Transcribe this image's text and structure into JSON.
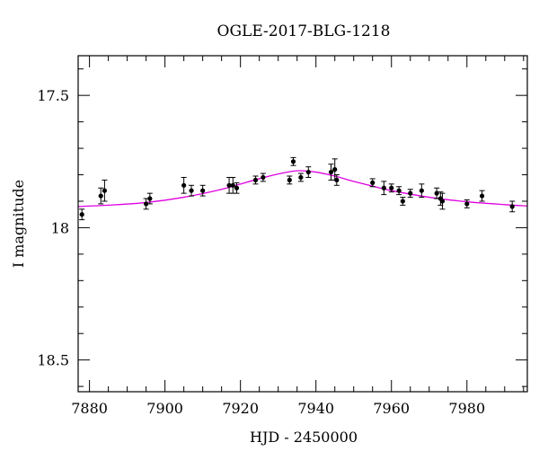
{
  "chart_data": {
    "type": "scatter",
    "title": "OGLE-2017-BLG-1218",
    "xlabel": "HJD - 2450000",
    "ylabel": "I magnitude",
    "xlim": [
      7877,
      7996
    ],
    "ylim": [
      18.62,
      17.35
    ],
    "y_inverted": true,
    "x_ticks": [
      7880,
      7900,
      7920,
      7940,
      7960,
      7980
    ],
    "x_tick_labels": [
      "7880",
      "7900",
      "7920",
      "7940",
      "7960",
      "7980"
    ],
    "y_ticks": [
      17.5,
      18,
      18.5
    ],
    "y_tick_labels": [
      "17.5",
      "18",
      "18.5"
    ],
    "grid": false,
    "series": [
      {
        "kind": "points-with-errorbars",
        "color": "#000000",
        "points": [
          {
            "x": 7878,
            "y": 17.95,
            "err": 0.02
          },
          {
            "x": 7883,
            "y": 17.88,
            "err": 0.03
          },
          {
            "x": 7884,
            "y": 17.86,
            "err": 0.04
          },
          {
            "x": 7895,
            "y": 17.91,
            "err": 0.02
          },
          {
            "x": 7896,
            "y": 17.89,
            "err": 0.02
          },
          {
            "x": 7905,
            "y": 17.84,
            "err": 0.03
          },
          {
            "x": 7907,
            "y": 17.86,
            "err": 0.02
          },
          {
            "x": 7910,
            "y": 17.86,
            "err": 0.02
          },
          {
            "x": 7917,
            "y": 17.84,
            "err": 0.03
          },
          {
            "x": 7918,
            "y": 17.84,
            "err": 0.03
          },
          {
            "x": 7919,
            "y": 17.85,
            "err": 0.02
          },
          {
            "x": 7924,
            "y": 17.82,
            "err": 0.015
          },
          {
            "x": 7926,
            "y": 17.81,
            "err": 0.015
          },
          {
            "x": 7933,
            "y": 17.82,
            "err": 0.015
          },
          {
            "x": 7934,
            "y": 17.75,
            "err": 0.015
          },
          {
            "x": 7936,
            "y": 17.81,
            "err": 0.015
          },
          {
            "x": 7938,
            "y": 17.79,
            "err": 0.02
          },
          {
            "x": 7944,
            "y": 17.79,
            "err": 0.03
          },
          {
            "x": 7945,
            "y": 17.78,
            "err": 0.04
          },
          {
            "x": 7945.5,
            "y": 17.82,
            "err": 0.02
          },
          {
            "x": 7955,
            "y": 17.83,
            "err": 0.015
          },
          {
            "x": 7958,
            "y": 17.85,
            "err": 0.025
          },
          {
            "x": 7960,
            "y": 17.85,
            "err": 0.015
          },
          {
            "x": 7962,
            "y": 17.86,
            "err": 0.015
          },
          {
            "x": 7963,
            "y": 17.9,
            "err": 0.015
          },
          {
            "x": 7965,
            "y": 17.87,
            "err": 0.015
          },
          {
            "x": 7968,
            "y": 17.86,
            "err": 0.025
          },
          {
            "x": 7972,
            "y": 17.87,
            "err": 0.02
          },
          {
            "x": 7973,
            "y": 17.89,
            "err": 0.025
          },
          {
            "x": 7973.5,
            "y": 17.9,
            "err": 0.03
          },
          {
            "x": 7980,
            "y": 17.91,
            "err": 0.015
          },
          {
            "x": 7984,
            "y": 17.88,
            "err": 0.02
          },
          {
            "x": 7992,
            "y": 17.92,
            "err": 0.02
          }
        ]
      },
      {
        "kind": "model-curve",
        "color": "#e000e0",
        "x": [
          7877,
          7885,
          7895,
          7905,
          7915,
          7920,
          7925,
          7930,
          7935,
          7940,
          7945,
          7950,
          7955,
          7960,
          7970,
          7980,
          7990,
          7996
        ],
        "y": [
          17.92,
          17.915,
          17.905,
          17.885,
          17.855,
          17.835,
          17.815,
          17.797,
          17.785,
          17.79,
          17.805,
          17.825,
          17.843,
          17.86,
          17.885,
          17.902,
          17.913,
          17.918
        ]
      }
    ]
  }
}
